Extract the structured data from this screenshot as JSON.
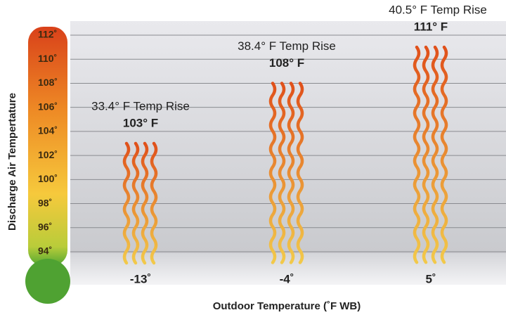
{
  "chart_data": {
    "type": "heat-waves",
    "y_label": "Discharge Air Tempertature",
    "x_label": "Outdoor Temperature (˚F WB)",
    "categories": [
      "-13˚",
      "-4˚",
      "5˚"
    ],
    "values": [
      103,
      108,
      111
    ],
    "value_labels": [
      "103° F",
      "108° F",
      "111° F"
    ],
    "annotations": [
      "33.4° F Temp Rise",
      "38.4° F Temp Rise",
      "40.5° F Temp Rise"
    ],
    "ylim": [
      94,
      112
    ],
    "yticks": [
      {
        "value": 94,
        "label": "94˚"
      },
      {
        "value": 96,
        "label": "96˚"
      },
      {
        "value": 98,
        "label": "98˚"
      },
      {
        "value": 100,
        "label": "100˚"
      },
      {
        "value": 102,
        "label": "102˚"
      },
      {
        "value": 104,
        "label": "104˚"
      },
      {
        "value": 106,
        "label": "106˚"
      },
      {
        "value": 108,
        "label": "108˚"
      },
      {
        "value": 110,
        "label": "110˚"
      },
      {
        "value": 112,
        "label": "112˚"
      }
    ],
    "grid": true,
    "colors": [
      "#e0501a",
      "#f2c94a"
    ]
  }
}
